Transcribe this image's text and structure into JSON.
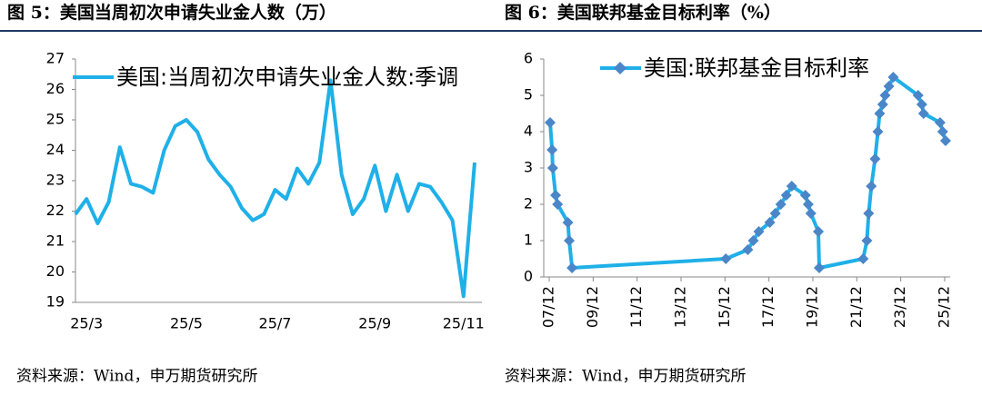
{
  "chart_data": [
    {
      "type": "line",
      "title": "图 5：美国当周初次申请失业金人数（万）",
      "source": "资料来源：Wind，申万期货研究所",
      "categories": [
        null,
        "25/3",
        null,
        null,
        null,
        null,
        null,
        null,
        null,
        null,
        "25/5",
        null,
        null,
        null,
        null,
        null,
        null,
        null,
        "25/7",
        null,
        null,
        null,
        null,
        null,
        null,
        null,
        null,
        "25/9",
        null,
        null,
        null,
        null,
        null,
        null,
        null,
        "25/11",
        null
      ],
      "series": [
        {
          "name": "美国:当周初次申请失业金人数:季调",
          "color": "#1fb0e8",
          "values": [
            21.9,
            22.4,
            21.6,
            22.3,
            24.1,
            22.9,
            22.8,
            22.6,
            24.0,
            24.8,
            25.0,
            24.6,
            23.7,
            23.2,
            22.8,
            22.1,
            21.7,
            21.9,
            22.7,
            22.4,
            23.4,
            22.9,
            23.6,
            26.3,
            23.2,
            21.9,
            22.4,
            23.5,
            22.0,
            23.2,
            22.0,
            22.9,
            22.8,
            22.3,
            21.7,
            19.2,
            23.6
          ]
        }
      ],
      "ylim": [
        19,
        27
      ],
      "yticks": [
        19,
        20,
        21,
        22,
        23,
        24,
        25,
        26,
        27
      ]
    },
    {
      "type": "line",
      "title": "图 6：美国联邦基金目标利率（%）",
      "source": "资料来源：Wind，申万期货研究所",
      "x": [
        2007.96,
        2008.05,
        2008.08,
        2008.21,
        2008.3,
        2008.77,
        2008.83,
        2008.96,
        2015.96,
        2016.96,
        2017.21,
        2017.46,
        2017.96,
        2018.21,
        2018.46,
        2018.71,
        2018.96,
        2019.58,
        2019.71,
        2019.83,
        2020.17,
        2020.21,
        2022.21,
        2022.38,
        2022.46,
        2022.58,
        2022.75,
        2022.88,
        2022.96,
        2023.1,
        2023.21,
        2023.38,
        2023.58,
        2024.71,
        2024.88,
        2024.96,
        2025.71,
        2025.83,
        2025.96
      ],
      "series": [
        {
          "name": "美国:联邦基金目标利率",
          "color": "#1fb0e8",
          "values": [
            4.25,
            3.5,
            3.0,
            2.25,
            2.0,
            1.5,
            1.0,
            0.25,
            0.5,
            0.75,
            1.0,
            1.25,
            1.5,
            1.75,
            2.0,
            2.25,
            2.5,
            2.25,
            2.0,
            1.75,
            1.25,
            0.25,
            0.5,
            1.0,
            1.75,
            2.5,
            3.25,
            4.0,
            4.5,
            4.75,
            5.0,
            5.25,
            5.5,
            5.0,
            4.75,
            4.5,
            4.25,
            4.0,
            3.75
          ]
        }
      ],
      "marker_color": "#4a86c8",
      "xlim": [
        2007.67,
        2026.17
      ],
      "xticks": [
        {
          "value": 2007.92,
          "label": "07/12"
        },
        {
          "value": 2009.92,
          "label": "09/12"
        },
        {
          "value": 2011.92,
          "label": "11/12"
        },
        {
          "value": 2013.92,
          "label": "13/12"
        },
        {
          "value": 2015.92,
          "label": "15/12"
        },
        {
          "value": 2017.92,
          "label": "17/12"
        },
        {
          "value": 2019.92,
          "label": "19/12"
        },
        {
          "value": 2021.92,
          "label": "21/12"
        },
        {
          "value": 2023.92,
          "label": "23/12"
        },
        {
          "value": 2025.92,
          "label": "25/12"
        }
      ],
      "ylim": [
        0,
        6
      ],
      "yticks": [
        0,
        1,
        2,
        3,
        4,
        5,
        6
      ]
    }
  ]
}
